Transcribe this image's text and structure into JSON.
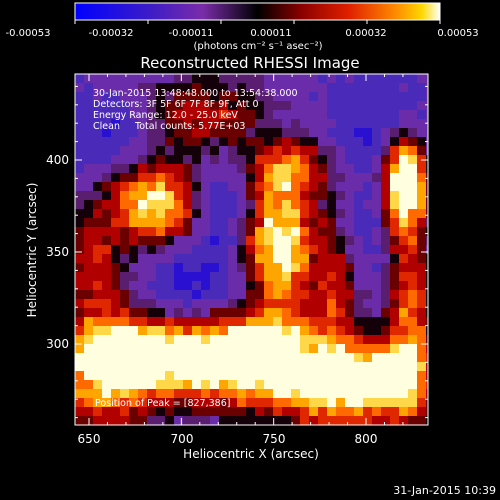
{
  "colorbar": {
    "tick_labels": [
      "-0.00053",
      "-0.00032",
      "-0.00011",
      "0.00011",
      "0.00032",
      "0.00053"
    ],
    "units_label": "(photons cm⁻² s⁻¹ asec⁻²)"
  },
  "plot": {
    "title": "Reconstructed RHESSI Image",
    "time_range": "30-Jan-2015 13:48:48.000 to 13:54:38.000",
    "detectors": "Detectors: 3F 5F 6F 7F 8F 9F, Att 0",
    "energy_range": "Energy Range: 12.0 - 25.0 keV",
    "method_counts": "Clean     Total counts: 5.77E+03",
    "peak_position": "Position of Peak = [827,386]",
    "xlabel": "Heliocentric X (arcsec)",
    "ylabel": "Heliocentric Y (arcsec)",
    "x_ticks": [
      "650",
      "700",
      "750",
      "800"
    ],
    "y_ticks": [
      "300",
      "350",
      "400"
    ]
  },
  "footer": {
    "timestamp": "31-Jan-2015 10:39"
  },
  "colors": {
    "background": "#000000",
    "colormap": [
      "#0000ff",
      "#3a1cc8",
      "#5a2aa8",
      "#7a2ca8",
      "#000000",
      "#8b0000",
      "#e02000",
      "#ff8c00",
      "#ffd700",
      "#ffffff"
    ]
  },
  "image_features": [
    {
      "name": "sources-bottom-band",
      "x": 700,
      "y": 300
    },
    {
      "name": "ring-source",
      "x": 690,
      "y": 372
    },
    {
      "name": "center-source",
      "x": 750,
      "y": 357
    },
    {
      "name": "peak-source",
      "x": 827,
      "y": 386
    }
  ]
}
